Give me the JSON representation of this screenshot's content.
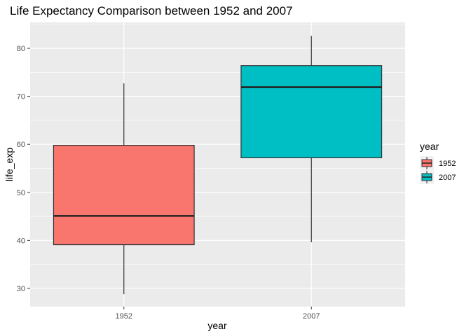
{
  "chart_data": {
    "type": "boxplot",
    "title": "Life Expectancy Comparison between 1952 and 2007",
    "xlabel": "year",
    "ylabel": "life_exp",
    "categories": [
      "1952",
      "2007"
    ],
    "ylim": [
      26.2,
      85.4
    ],
    "yticks": [
      30,
      40,
      50,
      60,
      70,
      80
    ],
    "boxes": [
      {
        "category": "1952",
        "min": 28.8,
        "q1": 39.1,
        "median": 45.1,
        "q3": 59.8,
        "max": 72.7,
        "color": "#F8766D"
      },
      {
        "category": "2007",
        "min": 39.6,
        "q1": 57.2,
        "median": 71.9,
        "q3": 76.4,
        "max": 82.6,
        "color": "#00BFC4"
      }
    ],
    "legend": {
      "title": "year",
      "position": "right",
      "entries": [
        {
          "label": "1952",
          "color": "#F8766D"
        },
        {
          "label": "2007",
          "color": "#00BFC4"
        }
      ]
    },
    "colors": {
      "panel_background": "#EBEBEB",
      "grid": "#FFFFFF"
    }
  }
}
